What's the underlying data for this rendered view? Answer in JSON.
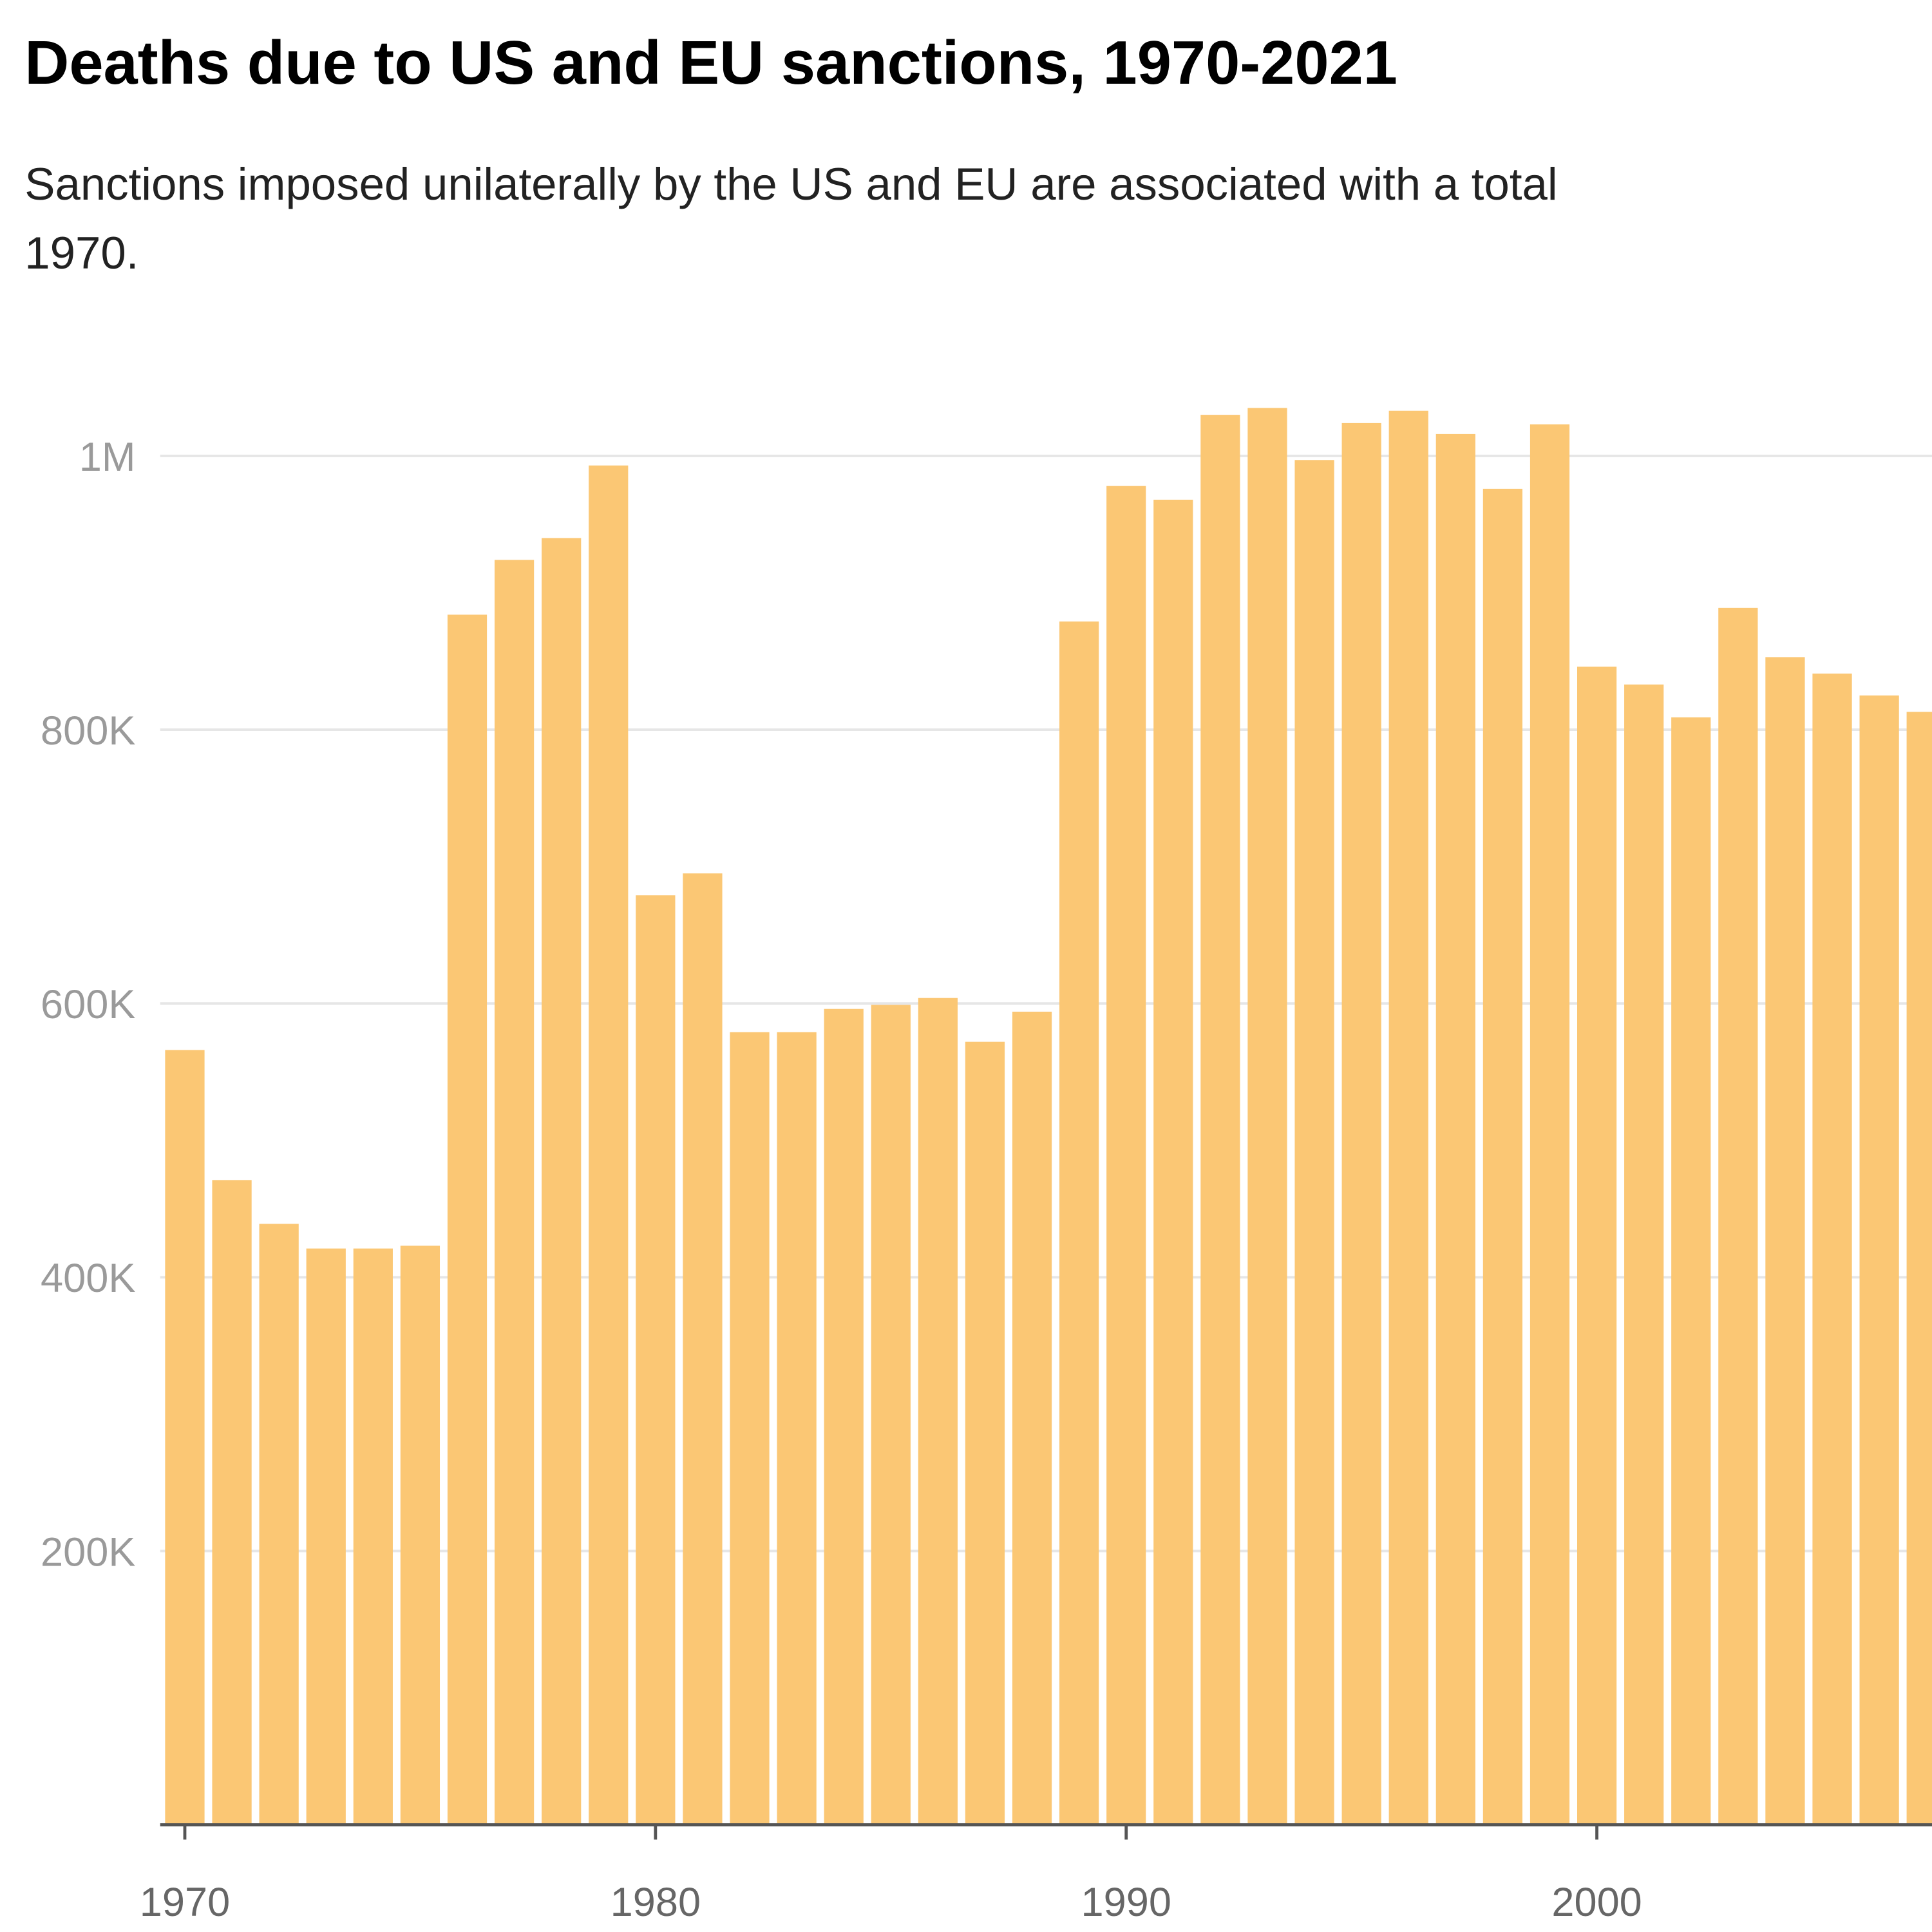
{
  "header": {
    "title": "Deaths due to US and EU sanctions, 1970-2021",
    "subtitle_lines": [
      "Sanctions imposed unilaterally by the US and EU are associated with a total",
      "1970."
    ]
  },
  "chart_data": {
    "type": "bar",
    "title": "Deaths due to US and EU sanctions, 1970-2021",
    "xlabel": "",
    "ylabel": "",
    "ylim": [
      0,
      1060000
    ],
    "grid": true,
    "bar_color": "#FBC774",
    "y_ticks": [
      {
        "value": 200000,
        "label": "200K"
      },
      {
        "value": 400000,
        "label": "400K"
      },
      {
        "value": 600000,
        "label": "600K"
      },
      {
        "value": 800000,
        "label": "800K"
      },
      {
        "value": 1000000,
        "label": "1M"
      }
    ],
    "x_ticks": [
      {
        "value": 1970,
        "label": "1970"
      },
      {
        "value": 1980,
        "label": "1980"
      },
      {
        "value": 1990,
        "label": "1990"
      },
      {
        "value": 2000,
        "label": "2000"
      }
    ],
    "categories": [
      1970,
      1971,
      1972,
      1973,
      1974,
      1975,
      1976,
      1977,
      1978,
      1979,
      1980,
      1981,
      1982,
      1983,
      1984,
      1985,
      1986,
      1987,
      1988,
      1989,
      1990,
      1991,
      1992,
      1993,
      1994,
      1995,
      1996,
      1997,
      1998,
      1999,
      2000,
      2001,
      2002,
      2003,
      2004,
      2005,
      2006,
      2007
    ],
    "values": [
      566000,
      471000,
      439000,
      421000,
      421000,
      423000,
      884000,
      924000,
      940000,
      993000,
      679000,
      695000,
      579000,
      579000,
      596000,
      599000,
      604000,
      572000,
      594000,
      879000,
      978000,
      968000,
      1030000,
      1035000,
      997000,
      1024000,
      1033000,
      1016000,
      976000,
      1023000,
      846000,
      833000,
      809000,
      889000,
      853000,
      841000,
      825000,
      813000
    ]
  }
}
